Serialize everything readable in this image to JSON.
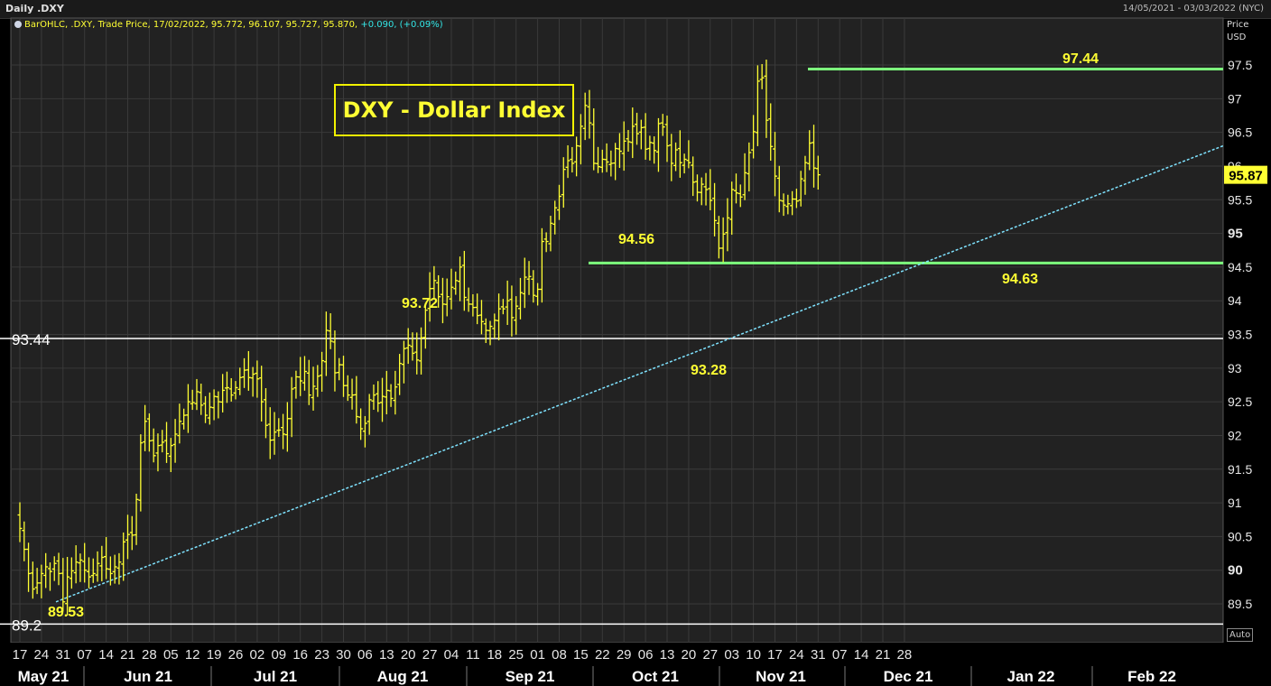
{
  "header": {
    "title": "Daily .DXY",
    "date_range": "14/05/2021 - 03/03/2022 (NYC)"
  },
  "legend": {
    "series_label": "BarOHLC, .DXY, Trade Price, 17/02/2022, 95.772, 96.107, 95.727, 95.870,",
    "change": "+0.090, (+0.09%)"
  },
  "title_box": "DXY - Dollar Index",
  "price_axis": {
    "label1": "Price",
    "label2": "USD"
  },
  "auto_label": "Auto",
  "colors": {
    "bars": "#ffff33",
    "levels": "#7dff7d",
    "trend": "#7fe3ff",
    "hline": "#ffffff",
    "background": "#000000",
    "plot_bg": "#222222"
  },
  "chart_data": {
    "type": "ohlc",
    "instrument": ".DXY",
    "ylim": [
      89.0,
      98.0
    ],
    "y_ticks": [
      "89.5",
      "90",
      "90.5",
      "91",
      "91.5",
      "92",
      "92.5",
      "93",
      "93.5",
      "94",
      "94.5",
      "95",
      "95.5",
      "96",
      "96.5",
      "97",
      "97.5"
    ],
    "bold_ticks": [
      "90",
      "95"
    ],
    "x_day_labels": [
      "17",
      "24",
      "31",
      "07",
      "14",
      "21",
      "28",
      "05",
      "12",
      "19",
      "26",
      "02",
      "09",
      "16",
      "23",
      "30",
      "06",
      "13",
      "20",
      "27",
      "04",
      "11",
      "18",
      "25",
      "01",
      "08",
      "15",
      "22",
      "29",
      "06",
      "13",
      "20",
      "27",
      "03",
      "10",
      "17",
      "24",
      "31",
      "07",
      "14",
      "21",
      "28"
    ],
    "month_labels": [
      "May 21",
      "Jun 21",
      "Jul 21",
      "Aug 21",
      "Sep 21",
      "Oct 21",
      "Nov 21",
      "Dec 21",
      "Jan 22",
      "Feb 22"
    ],
    "last_price": "95.87",
    "horizontal_lines": [
      {
        "value": 93.44,
        "label": "93.44"
      },
      {
        "value": 89.2,
        "label": "89.2"
      }
    ],
    "resistance_support": [
      {
        "value": 97.44,
        "from_day": "22 Nov 21",
        "to_day": "28 Feb 22"
      },
      {
        "value": 94.56,
        "from_day": "30 Sep 21",
        "to_day": "28 Feb 22"
      }
    ],
    "trendline": {
      "from": {
        "day": "24 May 21",
        "value": 89.53
      },
      "to": {
        "day": "28 Feb 22",
        "value": 96.3
      }
    },
    "annotations": [
      "89.53",
      "93.72",
      "94.56",
      "93.28",
      "97.44",
      "94.63"
    ],
    "closes": [
      90.62,
      90.31,
      89.95,
      89.72,
      89.81,
      89.95,
      90.05,
      89.98,
      90.1,
      89.95,
      89.53,
      89.9,
      89.99,
      90.12,
      90.15,
      90.0,
      89.9,
      89.95,
      90.1,
      90.19,
      90.02,
      89.95,
      90.05,
      90.12,
      90.42,
      90.53,
      90.52,
      91.05,
      91.89,
      92.21,
      91.92,
      91.7,
      91.85,
      91.9,
      91.73,
      91.85,
      92.02,
      92.21,
      92.3,
      92.5,
      92.49,
      92.65,
      92.45,
      92.3,
      92.42,
      92.58,
      92.5,
      92.67,
      92.71,
      92.6,
      92.71,
      92.86,
      92.97,
      92.86,
      92.91,
      92.84,
      92.5,
      92.15,
      91.93,
      92.05,
      92.08,
      92.02,
      92.25,
      92.69,
      92.87,
      92.81,
      92.95,
      92.6,
      92.73,
      92.88,
      93.11,
      93.56,
      93.4,
      92.93,
      93.05,
      92.74,
      92.6,
      92.6,
      92.28,
      92.1,
      92.18,
      92.53,
      92.6,
      92.48,
      92.58,
      92.67,
      92.55,
      92.72,
      93.07,
      93.29,
      93.34,
      93.22,
      93.12,
      93.45,
      93.86,
      94.18,
      94.3,
      94.06,
      93.95,
      94.06,
      94.2,
      94.3,
      94.5,
      94.05,
      93.95,
      93.9,
      93.78,
      93.69,
      93.56,
      93.62,
      93.71,
      93.88,
      93.88,
      94.0,
      93.75,
      93.92,
      94.12,
      94.35,
      94.36,
      94.08,
      94.17,
      94.88,
      94.88,
      95.15,
      95.38,
      95.55,
      95.95,
      96.08,
      96.04,
      96.3,
      96.59,
      96.9,
      96.64,
      96.04,
      95.99,
      96.1,
      96.06,
      96.04,
      96.26,
      96.22,
      96.37,
      96.36,
      96.59,
      96.48,
      96.57,
      96.25,
      96.35,
      96.23,
      96.63,
      96.58,
      96.3,
      96.04,
      96.24,
      96.05,
      96.1,
      96.05,
      95.76,
      95.61,
      95.73,
      95.65,
      95.49,
      95.19,
      94.78,
      94.99,
      95.23,
      95.65,
      95.6,
      95.54,
      95.9,
      96.2,
      96.51,
      97.26,
      97.31,
      96.68,
      96.29,
      95.85,
      95.49,
      95.42,
      95.44,
      95.51,
      95.48,
      95.81,
      96.05,
      96.34,
      95.97,
      95.87
    ]
  }
}
